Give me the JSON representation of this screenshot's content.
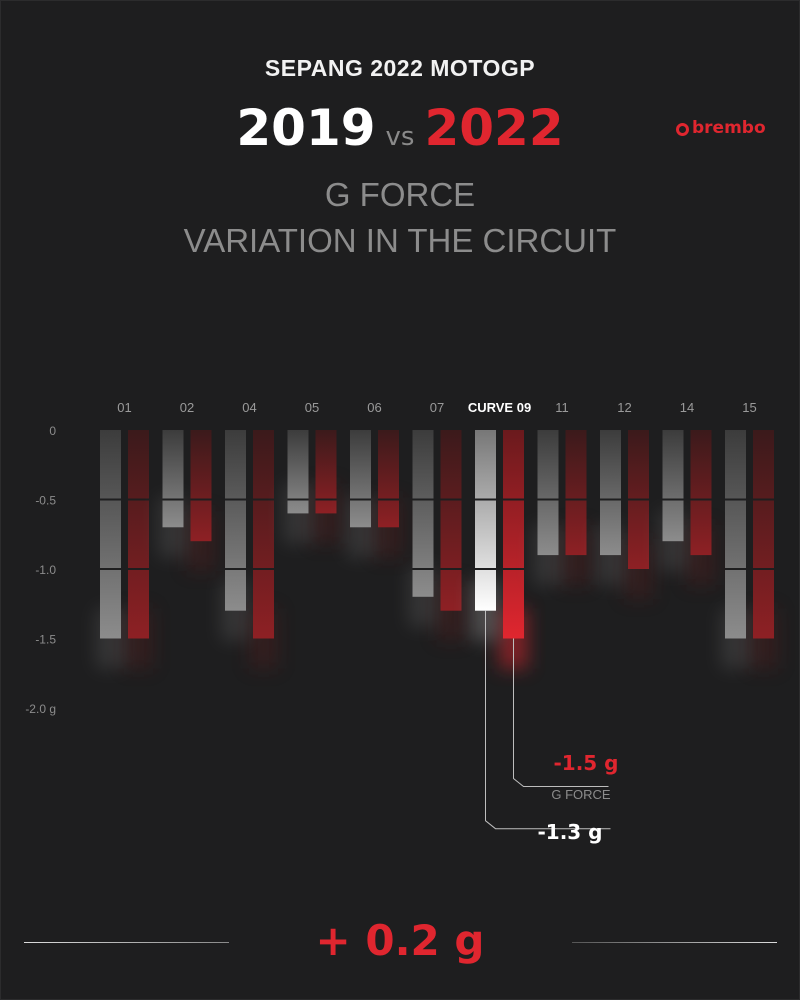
{
  "header": {
    "event": "SEPANG 2022 MOTOGP",
    "year_a": "2019",
    "vs": "vs",
    "year_b": "2022",
    "brand": "brembo",
    "subtitle_line1": "G FORCE",
    "subtitle_line2": "VARIATION IN THE CIRCUIT"
  },
  "colors": {
    "background": "#1e1e1f",
    "year_2019": "#8c8c8c",
    "year_2022": "#8e2024",
    "highlight_2019": "#ffffff",
    "highlight_2022": "#e0262f"
  },
  "chart_data": {
    "type": "bar",
    "categories": [
      "01",
      "02",
      "04",
      "05",
      "06",
      "07",
      "CURVE 09",
      "11",
      "12",
      "14",
      "15"
    ],
    "series": [
      {
        "name": "2019",
        "values": [
          -1.5,
          -0.7,
          -1.3,
          -0.6,
          -0.7,
          -1.2,
          -1.3,
          -0.9,
          -0.9,
          -0.8,
          -1.5
        ]
      },
      {
        "name": "2022",
        "values": [
          -1.5,
          -0.8,
          -1.5,
          -0.6,
          -0.7,
          -1.3,
          -1.5,
          -0.9,
          -1.0,
          -0.9,
          -1.5
        ]
      }
    ],
    "highlight_index": 6,
    "yticks": [
      "0",
      "-0.5",
      "-1.0",
      "-1.5",
      "-2.0 g"
    ],
    "ytick_values": [
      0,
      -0.5,
      -1.0,
      -1.5,
      -2.0
    ],
    "ylim": [
      -2.0,
      0
    ],
    "callout": {
      "value_2022": "-1.5 g",
      "label": "G FORCE",
      "value_2019": "-1.3 g"
    }
  },
  "footer": {
    "delta": "+ 0.2 g"
  }
}
